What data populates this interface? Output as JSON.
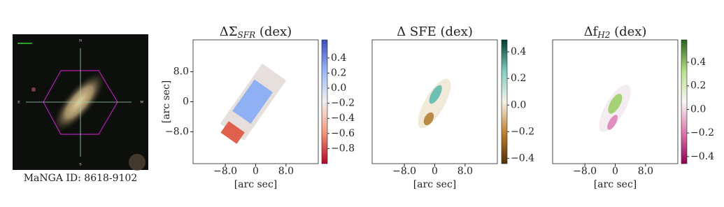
{
  "chart_data": [
    {
      "type": "image",
      "caption": "MaNGA ID: 8618-9102",
      "compass": [
        "N",
        "E",
        "S",
        "W"
      ]
    },
    {
      "type": "map",
      "title": "ΔΣ",
      "title_sub": "SFR",
      "title_rest": " (dex)",
      "xlabel": "[arc sec]",
      "ylabel": "[arc sec]",
      "xlim": [
        -16.5,
        16.5
      ],
      "ylim": [
        -16.5,
        16.5
      ],
      "xticks": [
        {
          "value": -8,
          "label": "−8.0"
        },
        0,
        {
          "value": 8,
          "label": "8.0"
        }
      ],
      "yticks": [
        {
          "value": 8,
          "label": "8.0"
        },
        0,
        {
          "value": -8,
          "label": "−8.0"
        }
      ],
      "clim": [
        -1.0,
        0.64
      ],
      "colorbar_ticks": [
        0.4,
        0.2,
        {
          "value": 0,
          "label": "0.0"
        },
        {
          "value": -0.2,
          "label": "−0.2"
        },
        {
          "value": -0.4,
          "label": "−0.4"
        },
        {
          "value": -0.6,
          "label": "−0.6"
        },
        {
          "value": -0.8,
          "label": "−0.8"
        }
      ],
      "colors": [
        "#b40426",
        "#f4987a",
        "#f2f0ef",
        "#9ab8f6",
        "#3b4cc0"
      ]
    },
    {
      "type": "map",
      "title": "Δ SFE (dex)",
      "xlabel": "[arc sec]",
      "xlim": [
        -16.5,
        16.5
      ],
      "ylim": [
        -16.5,
        16.5
      ],
      "xticks": [
        {
          "value": -8,
          "label": "−8.0"
        },
        0,
        {
          "value": 8,
          "label": "8.0"
        }
      ],
      "clim": [
        -0.44,
        0.49
      ],
      "colorbar_ticks": [
        0.4,
        0.2,
        {
          "value": 0,
          "label": "0.0"
        },
        {
          "value": -0.2,
          "label": "−0.2"
        },
        {
          "value": -0.4,
          "label": "−0.4"
        }
      ],
      "colors": [
        "#543005",
        "#bf812d",
        "#f5f2e8",
        "#80cdc1",
        "#003c30"
      ]
    },
    {
      "type": "map",
      "title": "Δf",
      "title_sub": "H2",
      "title_rest": " (dex)",
      "xlabel": "[arc sec]",
      "xlim": [
        -16.5,
        16.5
      ],
      "ylim": [
        -16.5,
        16.5
      ],
      "xticks": [
        {
          "value": -8,
          "label": "−8.0"
        },
        0,
        {
          "value": 8,
          "label": "8.0"
        }
      ],
      "clim": [
        -0.46,
        0.59
      ],
      "colorbar_ticks": [
        0.4,
        0.2,
        {
          "value": 0,
          "label": "0.0"
        },
        {
          "value": -0.2,
          "label": "−0.2"
        },
        {
          "value": -0.4,
          "label": "−0.4"
        }
      ],
      "colors": [
        "#8e0152",
        "#de77ae",
        "#f7f7f7",
        "#b8e186",
        "#276419"
      ]
    }
  ]
}
